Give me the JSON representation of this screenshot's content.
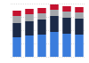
{
  "chart_data": {
    "type": "bar",
    "stacked": true,
    "grid": true,
    "tick_labels": false,
    "categories": [
      null,
      null,
      null,
      null,
      null,
      null
    ],
    "ylim": [
      0,
      60
    ],
    "yticks": [
      0,
      15,
      30,
      45,
      60
    ],
    "series": [
      {
        "color": "#3b7ddd",
        "values": [
          22,
          24,
          25,
          28,
          26,
          25
        ]
      },
      {
        "color": "#1b2a48",
        "values": [
          16,
          16,
          17,
          18,
          18,
          18
        ]
      },
      {
        "color": "#a4a7ac",
        "values": [
          8,
          8,
          7,
          7,
          7,
          7
        ]
      },
      {
        "color": "#c4122f",
        "values": [
          6,
          6,
          6,
          6,
          6,
          6
        ]
      }
    ]
  }
}
